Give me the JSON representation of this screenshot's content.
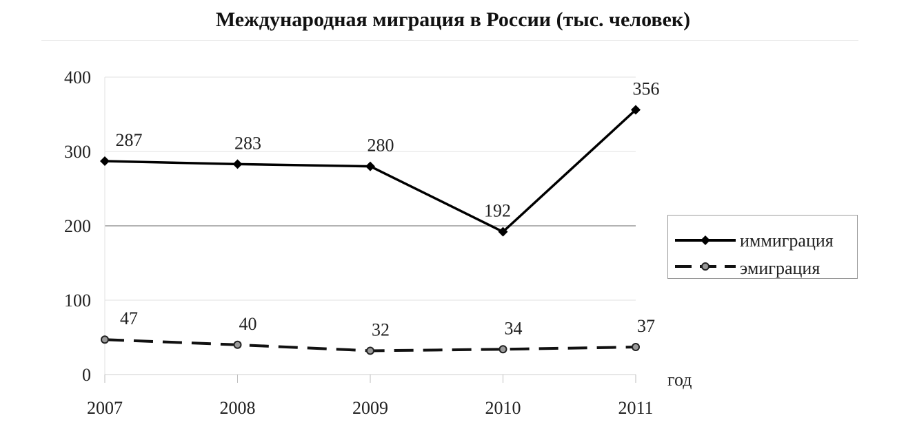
{
  "chart_data": {
    "type": "line",
    "title": "Международная миграция в России (тыс. человек)",
    "xlabel": "год",
    "ylabel": "",
    "categories": [
      "2007",
      "2008",
      "2009",
      "2010",
      "2011"
    ],
    "ylim": [
      0,
      400
    ],
    "yticks": [
      "0",
      "100",
      "200",
      "300",
      "400"
    ],
    "grid": "horizontal",
    "legend": "right",
    "series": [
      {
        "name": "иммиграция",
        "values": [
          287,
          283,
          280,
          192,
          356
        ],
        "labels": [
          "287",
          "283",
          "280",
          "192",
          "356"
        ],
        "style": "solid",
        "marker": "diamond",
        "color": "#000000"
      },
      {
        "name": "эмиграция",
        "values": [
          47,
          40,
          32,
          34,
          37
        ],
        "labels": [
          "47",
          "40",
          "32",
          "34",
          "37"
        ],
        "style": "dashed",
        "marker": "circle",
        "color": "#111111"
      }
    ]
  }
}
